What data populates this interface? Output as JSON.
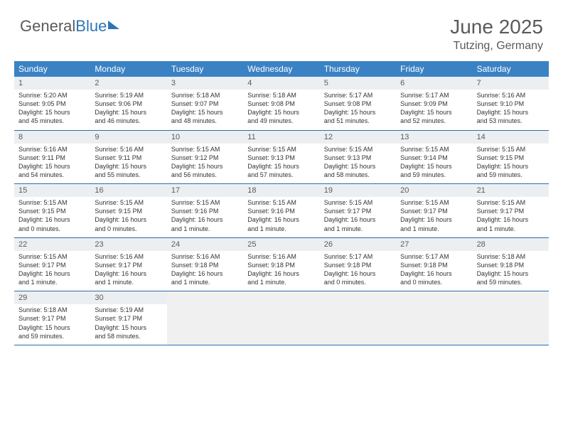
{
  "logo": {
    "text1": "General",
    "text2": "Blue"
  },
  "header": {
    "month": "June 2025",
    "location": "Tutzing, Germany"
  },
  "colors": {
    "header_bg": "#3b82c4",
    "header_text": "#ffffff",
    "border": "#2e6ca8",
    "daynum_bg": "#eceff1",
    "text": "#333333",
    "muted": "#5a5a5a",
    "logo_blue": "#2e75b6"
  },
  "weekdays": [
    "Sunday",
    "Monday",
    "Tuesday",
    "Wednesday",
    "Thursday",
    "Friday",
    "Saturday"
  ],
  "weeks": [
    [
      {
        "day": "1",
        "sunrise": "Sunrise: 5:20 AM",
        "sunset": "Sunset: 9:05 PM",
        "daylight1": "Daylight: 15 hours",
        "daylight2": "and 45 minutes."
      },
      {
        "day": "2",
        "sunrise": "Sunrise: 5:19 AM",
        "sunset": "Sunset: 9:06 PM",
        "daylight1": "Daylight: 15 hours",
        "daylight2": "and 46 minutes."
      },
      {
        "day": "3",
        "sunrise": "Sunrise: 5:18 AM",
        "sunset": "Sunset: 9:07 PM",
        "daylight1": "Daylight: 15 hours",
        "daylight2": "and 48 minutes."
      },
      {
        "day": "4",
        "sunrise": "Sunrise: 5:18 AM",
        "sunset": "Sunset: 9:08 PM",
        "daylight1": "Daylight: 15 hours",
        "daylight2": "and 49 minutes."
      },
      {
        "day": "5",
        "sunrise": "Sunrise: 5:17 AM",
        "sunset": "Sunset: 9:08 PM",
        "daylight1": "Daylight: 15 hours",
        "daylight2": "and 51 minutes."
      },
      {
        "day": "6",
        "sunrise": "Sunrise: 5:17 AM",
        "sunset": "Sunset: 9:09 PM",
        "daylight1": "Daylight: 15 hours",
        "daylight2": "and 52 minutes."
      },
      {
        "day": "7",
        "sunrise": "Sunrise: 5:16 AM",
        "sunset": "Sunset: 9:10 PM",
        "daylight1": "Daylight: 15 hours",
        "daylight2": "and 53 minutes."
      }
    ],
    [
      {
        "day": "8",
        "sunrise": "Sunrise: 5:16 AM",
        "sunset": "Sunset: 9:11 PM",
        "daylight1": "Daylight: 15 hours",
        "daylight2": "and 54 minutes."
      },
      {
        "day": "9",
        "sunrise": "Sunrise: 5:16 AM",
        "sunset": "Sunset: 9:11 PM",
        "daylight1": "Daylight: 15 hours",
        "daylight2": "and 55 minutes."
      },
      {
        "day": "10",
        "sunrise": "Sunrise: 5:15 AM",
        "sunset": "Sunset: 9:12 PM",
        "daylight1": "Daylight: 15 hours",
        "daylight2": "and 56 minutes."
      },
      {
        "day": "11",
        "sunrise": "Sunrise: 5:15 AM",
        "sunset": "Sunset: 9:13 PM",
        "daylight1": "Daylight: 15 hours",
        "daylight2": "and 57 minutes."
      },
      {
        "day": "12",
        "sunrise": "Sunrise: 5:15 AM",
        "sunset": "Sunset: 9:13 PM",
        "daylight1": "Daylight: 15 hours",
        "daylight2": "and 58 minutes."
      },
      {
        "day": "13",
        "sunrise": "Sunrise: 5:15 AM",
        "sunset": "Sunset: 9:14 PM",
        "daylight1": "Daylight: 15 hours",
        "daylight2": "and 59 minutes."
      },
      {
        "day": "14",
        "sunrise": "Sunrise: 5:15 AM",
        "sunset": "Sunset: 9:15 PM",
        "daylight1": "Daylight: 15 hours",
        "daylight2": "and 59 minutes."
      }
    ],
    [
      {
        "day": "15",
        "sunrise": "Sunrise: 5:15 AM",
        "sunset": "Sunset: 9:15 PM",
        "daylight1": "Daylight: 16 hours",
        "daylight2": "and 0 minutes."
      },
      {
        "day": "16",
        "sunrise": "Sunrise: 5:15 AM",
        "sunset": "Sunset: 9:15 PM",
        "daylight1": "Daylight: 16 hours",
        "daylight2": "and 0 minutes."
      },
      {
        "day": "17",
        "sunrise": "Sunrise: 5:15 AM",
        "sunset": "Sunset: 9:16 PM",
        "daylight1": "Daylight: 16 hours",
        "daylight2": "and 1 minute."
      },
      {
        "day": "18",
        "sunrise": "Sunrise: 5:15 AM",
        "sunset": "Sunset: 9:16 PM",
        "daylight1": "Daylight: 16 hours",
        "daylight2": "and 1 minute."
      },
      {
        "day": "19",
        "sunrise": "Sunrise: 5:15 AM",
        "sunset": "Sunset: 9:17 PM",
        "daylight1": "Daylight: 16 hours",
        "daylight2": "and 1 minute."
      },
      {
        "day": "20",
        "sunrise": "Sunrise: 5:15 AM",
        "sunset": "Sunset: 9:17 PM",
        "daylight1": "Daylight: 16 hours",
        "daylight2": "and 1 minute."
      },
      {
        "day": "21",
        "sunrise": "Sunrise: 5:15 AM",
        "sunset": "Sunset: 9:17 PM",
        "daylight1": "Daylight: 16 hours",
        "daylight2": "and 1 minute."
      }
    ],
    [
      {
        "day": "22",
        "sunrise": "Sunrise: 5:15 AM",
        "sunset": "Sunset: 9:17 PM",
        "daylight1": "Daylight: 16 hours",
        "daylight2": "and 1 minute."
      },
      {
        "day": "23",
        "sunrise": "Sunrise: 5:16 AM",
        "sunset": "Sunset: 9:17 PM",
        "daylight1": "Daylight: 16 hours",
        "daylight2": "and 1 minute."
      },
      {
        "day": "24",
        "sunrise": "Sunrise: 5:16 AM",
        "sunset": "Sunset: 9:18 PM",
        "daylight1": "Daylight: 16 hours",
        "daylight2": "and 1 minute."
      },
      {
        "day": "25",
        "sunrise": "Sunrise: 5:16 AM",
        "sunset": "Sunset: 9:18 PM",
        "daylight1": "Daylight: 16 hours",
        "daylight2": "and 1 minute."
      },
      {
        "day": "26",
        "sunrise": "Sunrise: 5:17 AM",
        "sunset": "Sunset: 9:18 PM",
        "daylight1": "Daylight: 16 hours",
        "daylight2": "and 0 minutes."
      },
      {
        "day": "27",
        "sunrise": "Sunrise: 5:17 AM",
        "sunset": "Sunset: 9:18 PM",
        "daylight1": "Daylight: 16 hours",
        "daylight2": "and 0 minutes."
      },
      {
        "day": "28",
        "sunrise": "Sunrise: 5:18 AM",
        "sunset": "Sunset: 9:18 PM",
        "daylight1": "Daylight: 15 hours",
        "daylight2": "and 59 minutes."
      }
    ],
    [
      {
        "day": "29",
        "sunrise": "Sunrise: 5:18 AM",
        "sunset": "Sunset: 9:17 PM",
        "daylight1": "Daylight: 15 hours",
        "daylight2": "and 59 minutes."
      },
      {
        "day": "30",
        "sunrise": "Sunrise: 5:19 AM",
        "sunset": "Sunset: 9:17 PM",
        "daylight1": "Daylight: 15 hours",
        "daylight2": "and 58 minutes."
      },
      {
        "empty": true
      },
      {
        "empty": true
      },
      {
        "empty": true
      },
      {
        "empty": true
      },
      {
        "empty": true
      }
    ]
  ]
}
